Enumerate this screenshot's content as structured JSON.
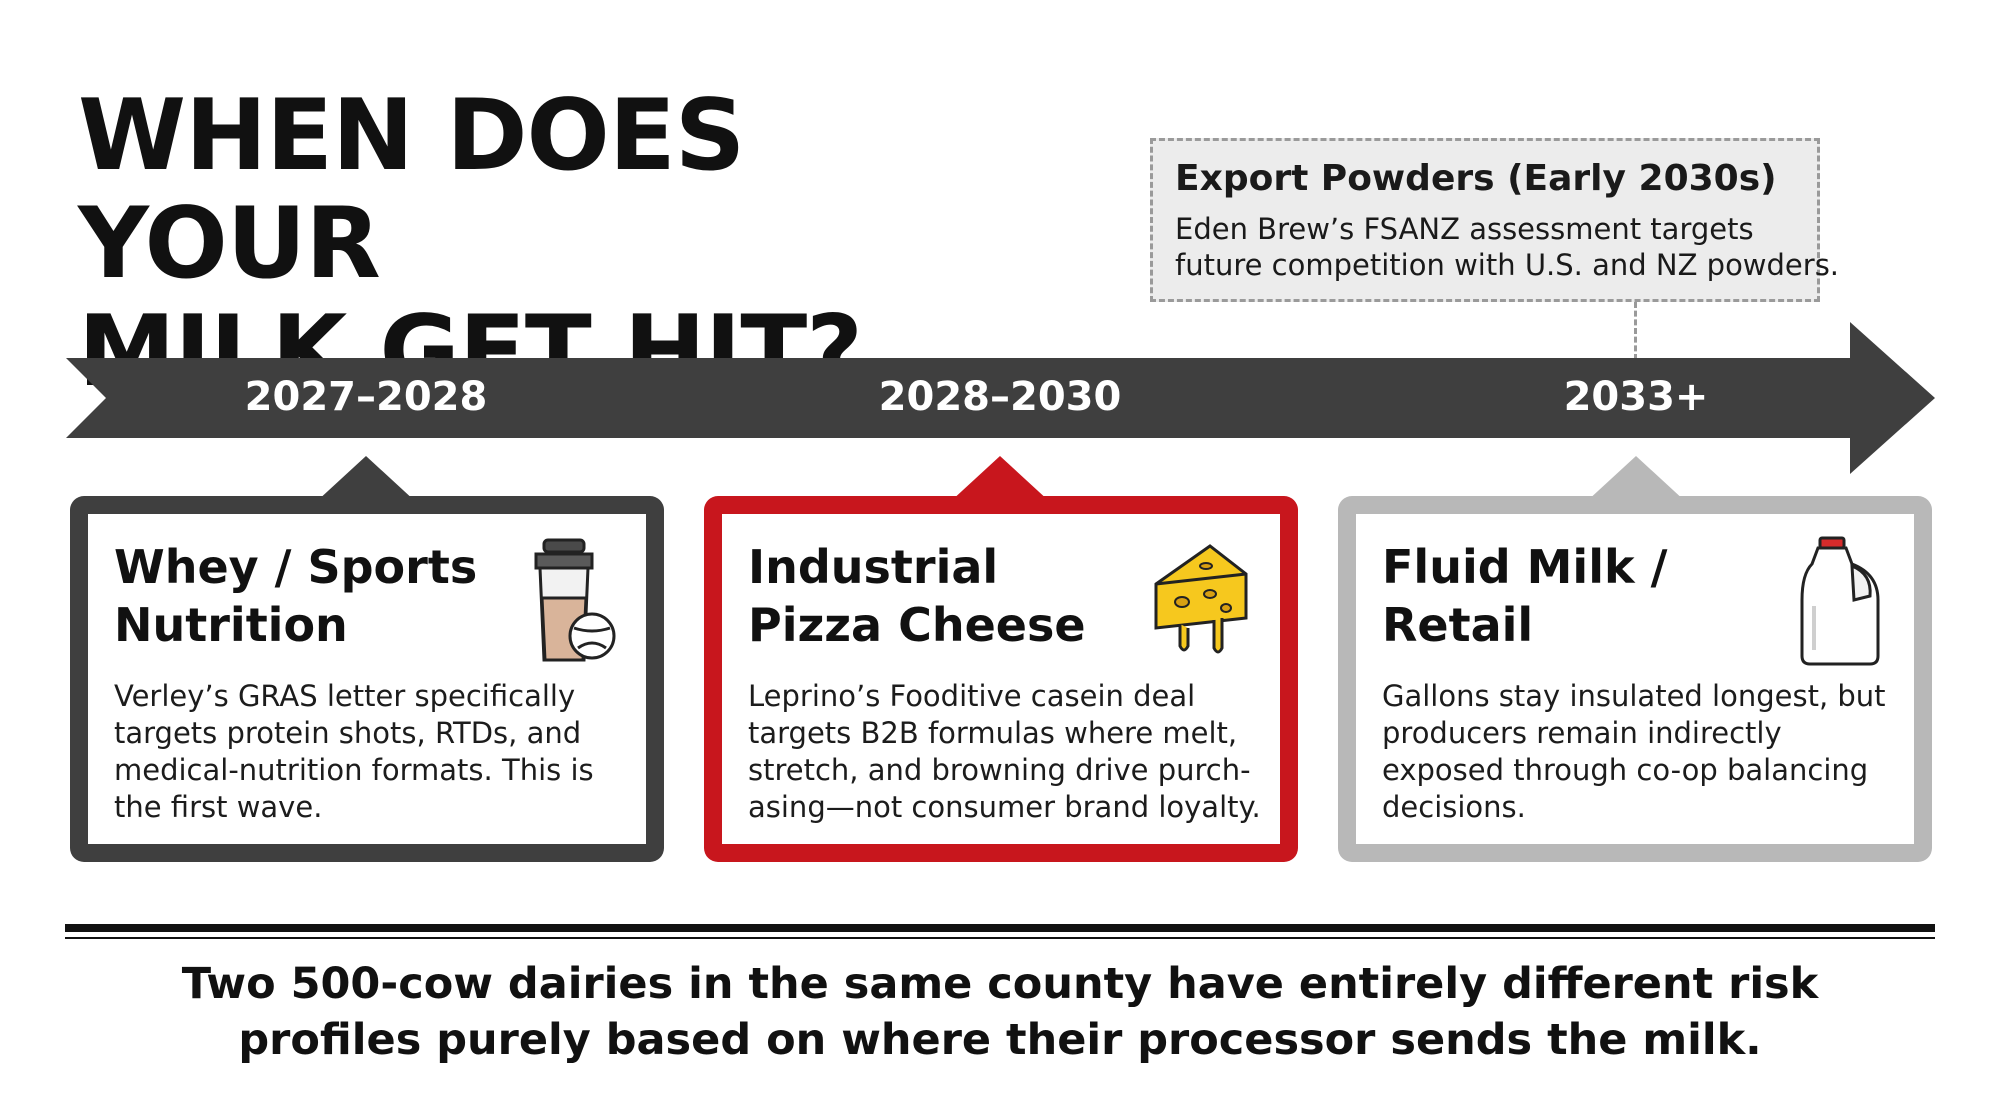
{
  "title": {
    "line1": "WHEN DOES YOUR",
    "line2": "MILK GET HIT?"
  },
  "callout": {
    "title": "Export Powders (Early 2030s)",
    "body_line1": "Eden Brew’s FSANZ assessment targets",
    "body_line2": "future competition with U.S. and NZ powders."
  },
  "timeline": {
    "phases": [
      "2027–2028",
      "2028–2030",
      "2033+"
    ]
  },
  "cards": [
    {
      "title_line1": "Whey / Sports",
      "title_line2": "Nutrition",
      "body": [
        "Verley’s GRAS letter specifically",
        "targets protein shots, RTDs, and",
        "medical-nutrition formats. This is",
        "the first wave."
      ],
      "icon": "shaker-bottle-icon",
      "border_color": "#3f3f3f"
    },
    {
      "title_line1": "Industrial",
      "title_line2": "Pizza Cheese",
      "body": [
        "Leprino’s Fooditive casein deal",
        "targets B2B formulas where melt,",
        "stretch, and browning drive purch-",
        "asing—not consumer brand loyalty."
      ],
      "icon": "cheese-wedge-icon",
      "border_color": "#c8161d"
    },
    {
      "title_line1": "Fluid Milk /",
      "title_line2": "Retail",
      "body": [
        "Gallons stay insulated longest, but",
        "producers remain indirectly",
        "exposed through co-op balancing",
        "decisions."
      ],
      "icon": "milk-jug-icon",
      "border_color": "#b8b8b8"
    }
  ],
  "takeaway": {
    "line1": "Two 500-cow dairies in the same county have entirely different risk",
    "line2": "profiles purely based on where their processor sends the milk."
  }
}
